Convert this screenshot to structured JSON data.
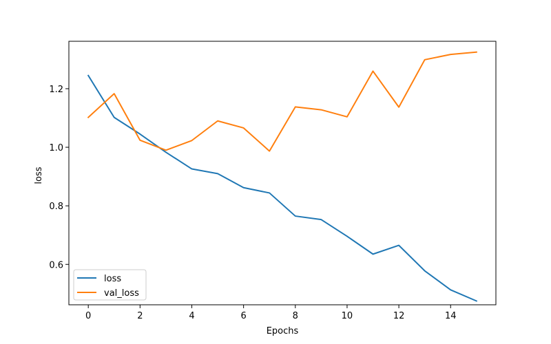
{
  "chart_data": {
    "type": "line",
    "title": "",
    "xlabel": "Epochs",
    "ylabel": "loss",
    "x": [
      0,
      1,
      2,
      3,
      4,
      5,
      6,
      7,
      8,
      9,
      10,
      11,
      12,
      13,
      14,
      15
    ],
    "xlim": [
      -0.75,
      15.75
    ],
    "ylim": [
      0.462,
      1.362
    ],
    "xticks": [
      0,
      2,
      4,
      6,
      8,
      10,
      12,
      14
    ],
    "yticks": [
      0.6,
      0.8,
      1.0,
      1.2
    ],
    "ytick_labels": [
      "0.6",
      "0.8",
      "1.0",
      "1.2"
    ],
    "grid": false,
    "legend_position": "lower-left",
    "series": [
      {
        "name": "loss",
        "color": "#1f77b4",
        "values": [
          1.245,
          1.102,
          1.045,
          0.983,
          0.926,
          0.91,
          0.862,
          0.844,
          0.765,
          0.753,
          0.696,
          0.635,
          0.665,
          0.578,
          0.513,
          0.475
        ]
      },
      {
        "name": "val_loss",
        "color": "#ff7f0e",
        "values": [
          1.102,
          1.183,
          1.024,
          0.99,
          1.023,
          1.09,
          1.066,
          0.987,
          1.138,
          1.128,
          1.104,
          1.26,
          1.137,
          1.299,
          1.317,
          1.325
        ]
      }
    ]
  }
}
